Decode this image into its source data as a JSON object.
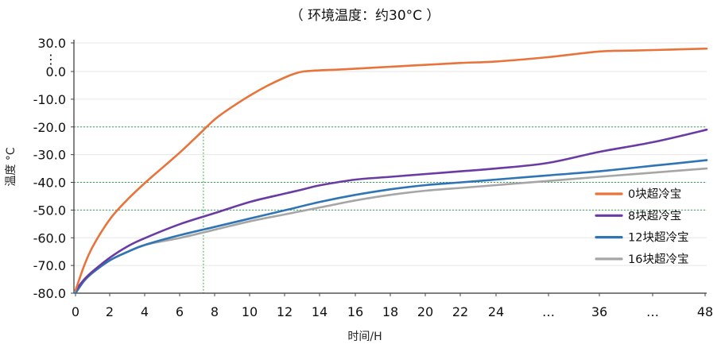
{
  "chart_data": {
    "type": "line",
    "title": "（ 环境温度：约30°C ）",
    "xlabel": "时间/H",
    "ylabel": "温度 °C",
    "x_ticks": [
      "0",
      "2",
      "4",
      "6",
      "8",
      "10",
      "12",
      "14",
      "16",
      "18",
      "20",
      "22",
      "24",
      "…",
      "36",
      "…",
      "48"
    ],
    "y_ticks": [
      "30.0",
      "0.0",
      "-10.0",
      "-20.0",
      "-30.0",
      "-40.0",
      "-50.0",
      "-60.0",
      "-70.0",
      "-80.0"
    ],
    "y_break_marker": "⋮",
    "highlight_ticks": [
      "-20.0",
      "-40.0",
      "-50.0"
    ],
    "highlight_color": "#d9282f",
    "ylim": [
      -80,
      30
    ],
    "grid": true,
    "legend_position": "right",
    "reference_lines": [
      {
        "y": -20,
        "x_end": 7.3
      },
      {
        "y": -40
      },
      {
        "y": -50
      }
    ],
    "series": [
      {
        "name": "0块超冷宝",
        "color": "#e8743b",
        "points": [
          [
            0,
            -79
          ],
          [
            0.5,
            -70
          ],
          [
            1,
            -63
          ],
          [
            2,
            -53
          ],
          [
            3,
            -46
          ],
          [
            4,
            -40
          ],
          [
            5,
            -34.5
          ],
          [
            6,
            -29
          ],
          [
            7,
            -23
          ],
          [
            8,
            -17
          ],
          [
            9,
            -12.5
          ],
          [
            10,
            -8.5
          ],
          [
            11,
            -5
          ],
          [
            12,
            -2
          ],
          [
            12.5,
            -0.8
          ],
          [
            13,
            0
          ],
          [
            14,
            1.3
          ],
          [
            15,
            2
          ],
          [
            16,
            3
          ],
          [
            18,
            5
          ],
          [
            20,
            7
          ],
          [
            22,
            9
          ],
          [
            24,
            10.5
          ],
          [
            30,
            15
          ],
          [
            36,
            21
          ],
          [
            40,
            22
          ],
          [
            44,
            23
          ],
          [
            48,
            24
          ]
        ]
      },
      {
        "name": "8块超冷宝",
        "color": "#6a3ca3",
        "points": [
          [
            0,
            -79
          ],
          [
            0.5,
            -75
          ],
          [
            1,
            -72
          ],
          [
            2,
            -67
          ],
          [
            3,
            -63
          ],
          [
            4,
            -60
          ],
          [
            6,
            -55
          ],
          [
            8,
            -51
          ],
          [
            10,
            -47
          ],
          [
            12,
            -44
          ],
          [
            13,
            -42.5
          ],
          [
            14,
            -41
          ],
          [
            16,
            -39
          ],
          [
            18,
            -38
          ],
          [
            20,
            -37
          ],
          [
            22,
            -36
          ],
          [
            24,
            -35
          ],
          [
            30,
            -33
          ],
          [
            36,
            -29
          ],
          [
            42,
            -25.5
          ],
          [
            48,
            -21
          ]
        ]
      },
      {
        "name": "12块超冷宝",
        "color": "#2f75b5",
        "points": [
          [
            0,
            -80
          ],
          [
            0.5,
            -75.5
          ],
          [
            1,
            -72.5
          ],
          [
            2,
            -68
          ],
          [
            3,
            -65
          ],
          [
            4,
            -62.5
          ],
          [
            6,
            -59
          ],
          [
            8,
            -56
          ],
          [
            10,
            -53
          ],
          [
            12,
            -50
          ],
          [
            14,
            -47
          ],
          [
            16,
            -44.5
          ],
          [
            18,
            -42.5
          ],
          [
            20,
            -41
          ],
          [
            22,
            -40
          ],
          [
            24,
            -39
          ],
          [
            30,
            -37.5
          ],
          [
            36,
            -36
          ],
          [
            42,
            -34
          ],
          [
            48,
            -32
          ]
        ]
      },
      {
        "name": "16块超冷宝",
        "color": "#a6a6a6",
        "points": [
          [
            0,
            -80
          ],
          [
            0.5,
            -75.5
          ],
          [
            1,
            -72.5
          ],
          [
            2,
            -68
          ],
          [
            3,
            -65
          ],
          [
            4,
            -62.5
          ],
          [
            6,
            -60
          ],
          [
            8,
            -57
          ],
          [
            10,
            -54
          ],
          [
            12,
            -51.5
          ],
          [
            14,
            -49
          ],
          [
            16,
            -46.5
          ],
          [
            18,
            -44.5
          ],
          [
            20,
            -43
          ],
          [
            22,
            -42
          ],
          [
            24,
            -41
          ],
          [
            30,
            -39.5
          ],
          [
            36,
            -38
          ],
          [
            42,
            -36.5
          ],
          [
            48,
            -35
          ]
        ]
      }
    ]
  }
}
